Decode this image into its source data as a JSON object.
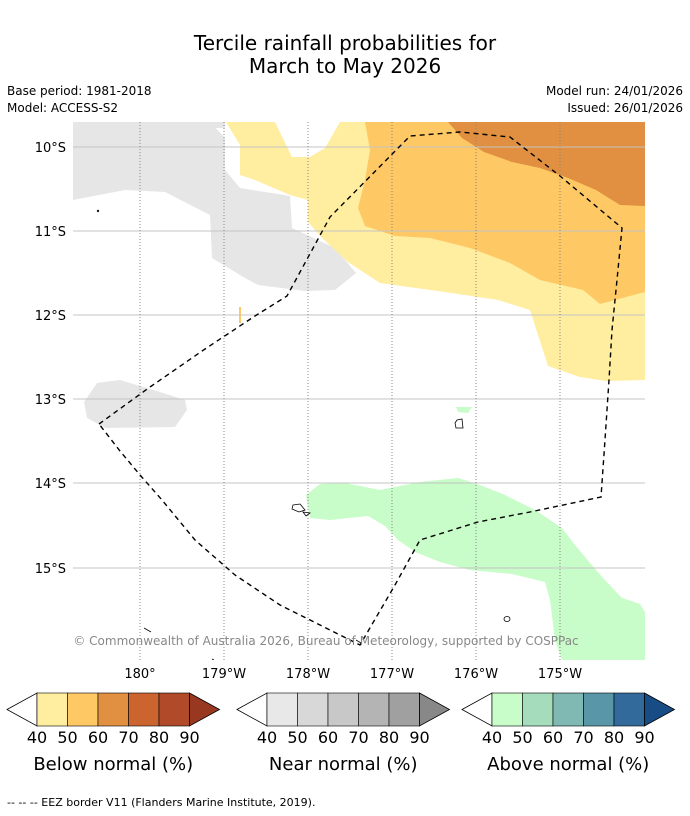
{
  "header": {
    "title_line1": "Tercile rainfall probabilities for",
    "title_line2": "March to May 2026",
    "base_period": "Base period: 1981-2018",
    "model": "Model: ACCESS-S2",
    "model_run": "Model run: 24/01/2026",
    "issued": "Issued: 26/01/2026"
  },
  "map": {
    "lat_labels": [
      "10°S",
      "11°S",
      "12°S",
      "13°S",
      "14°S",
      "15°S"
    ],
    "lon_labels": [
      "180°",
      "179°W",
      "178°W",
      "177°W",
      "176°W",
      "175°W"
    ],
    "copyright": "© Commonwealth of Australia 2026, Bureau of Meteorology, supported by COSPPac"
  },
  "legends": [
    {
      "title": "Below normal (%)",
      "ticks": [
        "40",
        "50",
        "60",
        "70",
        "80",
        "90"
      ],
      "colors": [
        "#ffeda0",
        "#fec965",
        "#e09040",
        "#cc6430",
        "#b04a28",
        "#983820"
      ]
    },
    {
      "title": "Near normal (%)",
      "ticks": [
        "40",
        "50",
        "60",
        "70",
        "80",
        "90"
      ],
      "colors": [
        "#e8e8e8",
        "#d8d8d8",
        "#c8c8c8",
        "#b4b4b4",
        "#a0a0a0",
        "#888888"
      ]
    },
    {
      "title": "Above normal (%)",
      "ticks": [
        "40",
        "50",
        "60",
        "70",
        "80",
        "90"
      ],
      "colors": [
        "#c8fcc8",
        "#a4dcbc",
        "#80b8b4",
        "#5896a8",
        "#326a9c",
        "#184c84"
      ]
    }
  ],
  "footnote": "--  --  -- EEZ border V11 (Flanders Marine Institute, 2019)."
}
